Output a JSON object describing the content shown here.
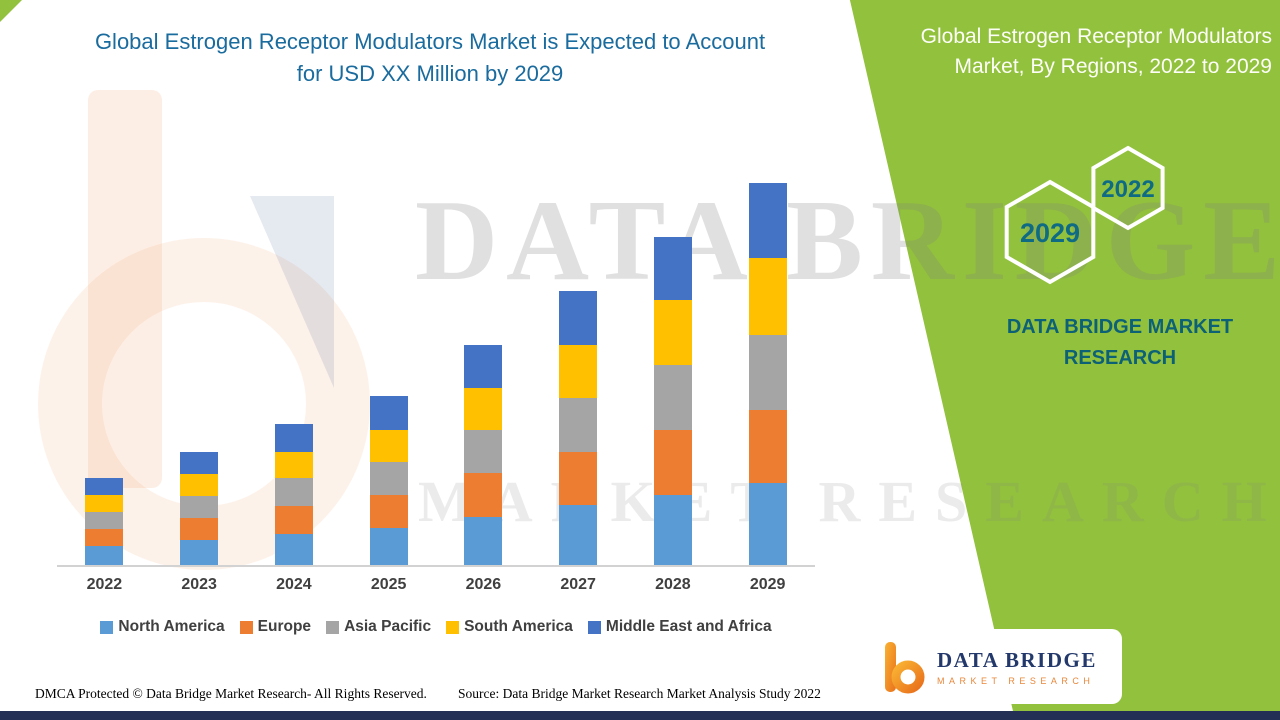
{
  "header": {
    "title": "Global Estrogen Receptor Modulators Market is Expected to Account for USD XX Million by 2029"
  },
  "side_panel": {
    "title": "Global Estrogen Receptor Modulators Market, By Regions, 2022 to 2029",
    "badge_top_year": "2022",
    "badge_bottom_year": "2029",
    "brand_line1": "DATA BRIDGE MARKET",
    "brand_line2": "RESEARCH",
    "panel_color": "#92C13D"
  },
  "watermark": {
    "line1": "DATA BRIDGE",
    "line2": "MARKET RESEARCH"
  },
  "chart_data": {
    "type": "bar",
    "stacked": true,
    "title": "Global Estrogen Receptor Modulators Market, By Regions, 2022 to 2029",
    "xlabel": "",
    "ylabel": "",
    "value_note": "Y-axis is unlabeled in the source image; values are estimated relative units (market sized as USD XX Million).",
    "categories": [
      "2022",
      "2023",
      "2024",
      "2025",
      "2026",
      "2027",
      "2028",
      "2029"
    ],
    "series": [
      {
        "name": "North America",
        "color": "#5B9BD5",
        "values": [
          1.9,
          2.5,
          3.1,
          3.7,
          4.8,
          6.0,
          7.0,
          8.2
        ]
      },
      {
        "name": "Europe",
        "color": "#ED7D31",
        "values": [
          1.7,
          2.2,
          2.8,
          3.3,
          4.4,
          5.3,
          6.5,
          7.3
        ]
      },
      {
        "name": "Asia Pacific",
        "color": "#A5A5A5",
        "values": [
          1.7,
          2.2,
          2.8,
          3.3,
          4.3,
          5.4,
          6.5,
          7.5
        ]
      },
      {
        "name": "South America",
        "color": "#FFC000",
        "values": [
          1.7,
          2.2,
          2.6,
          3.2,
          4.2,
          5.3,
          6.5,
          7.7
        ]
      },
      {
        "name": "Middle East and Africa",
        "color": "#4472C4",
        "values": [
          1.7,
          2.2,
          2.8,
          3.4,
          4.3,
          5.4,
          6.3,
          7.5
        ]
      }
    ],
    "totals": [
      8.7,
      11.3,
      14.1,
      16.9,
      22.0,
      27.4,
      32.8,
      38.2
    ],
    "ylim": [
      0,
      40
    ],
    "grid": false,
    "legend_position": "bottom"
  },
  "footer": {
    "dmca": "DMCA Protected © Data Bridge Market Research- All Rights Reserved.",
    "source": "Source: Data Bridge Market Research Market Analysis Study 2022"
  },
  "logo": {
    "title": "DATA BRIDGE",
    "subtitle": "MARKET RESEARCH"
  }
}
